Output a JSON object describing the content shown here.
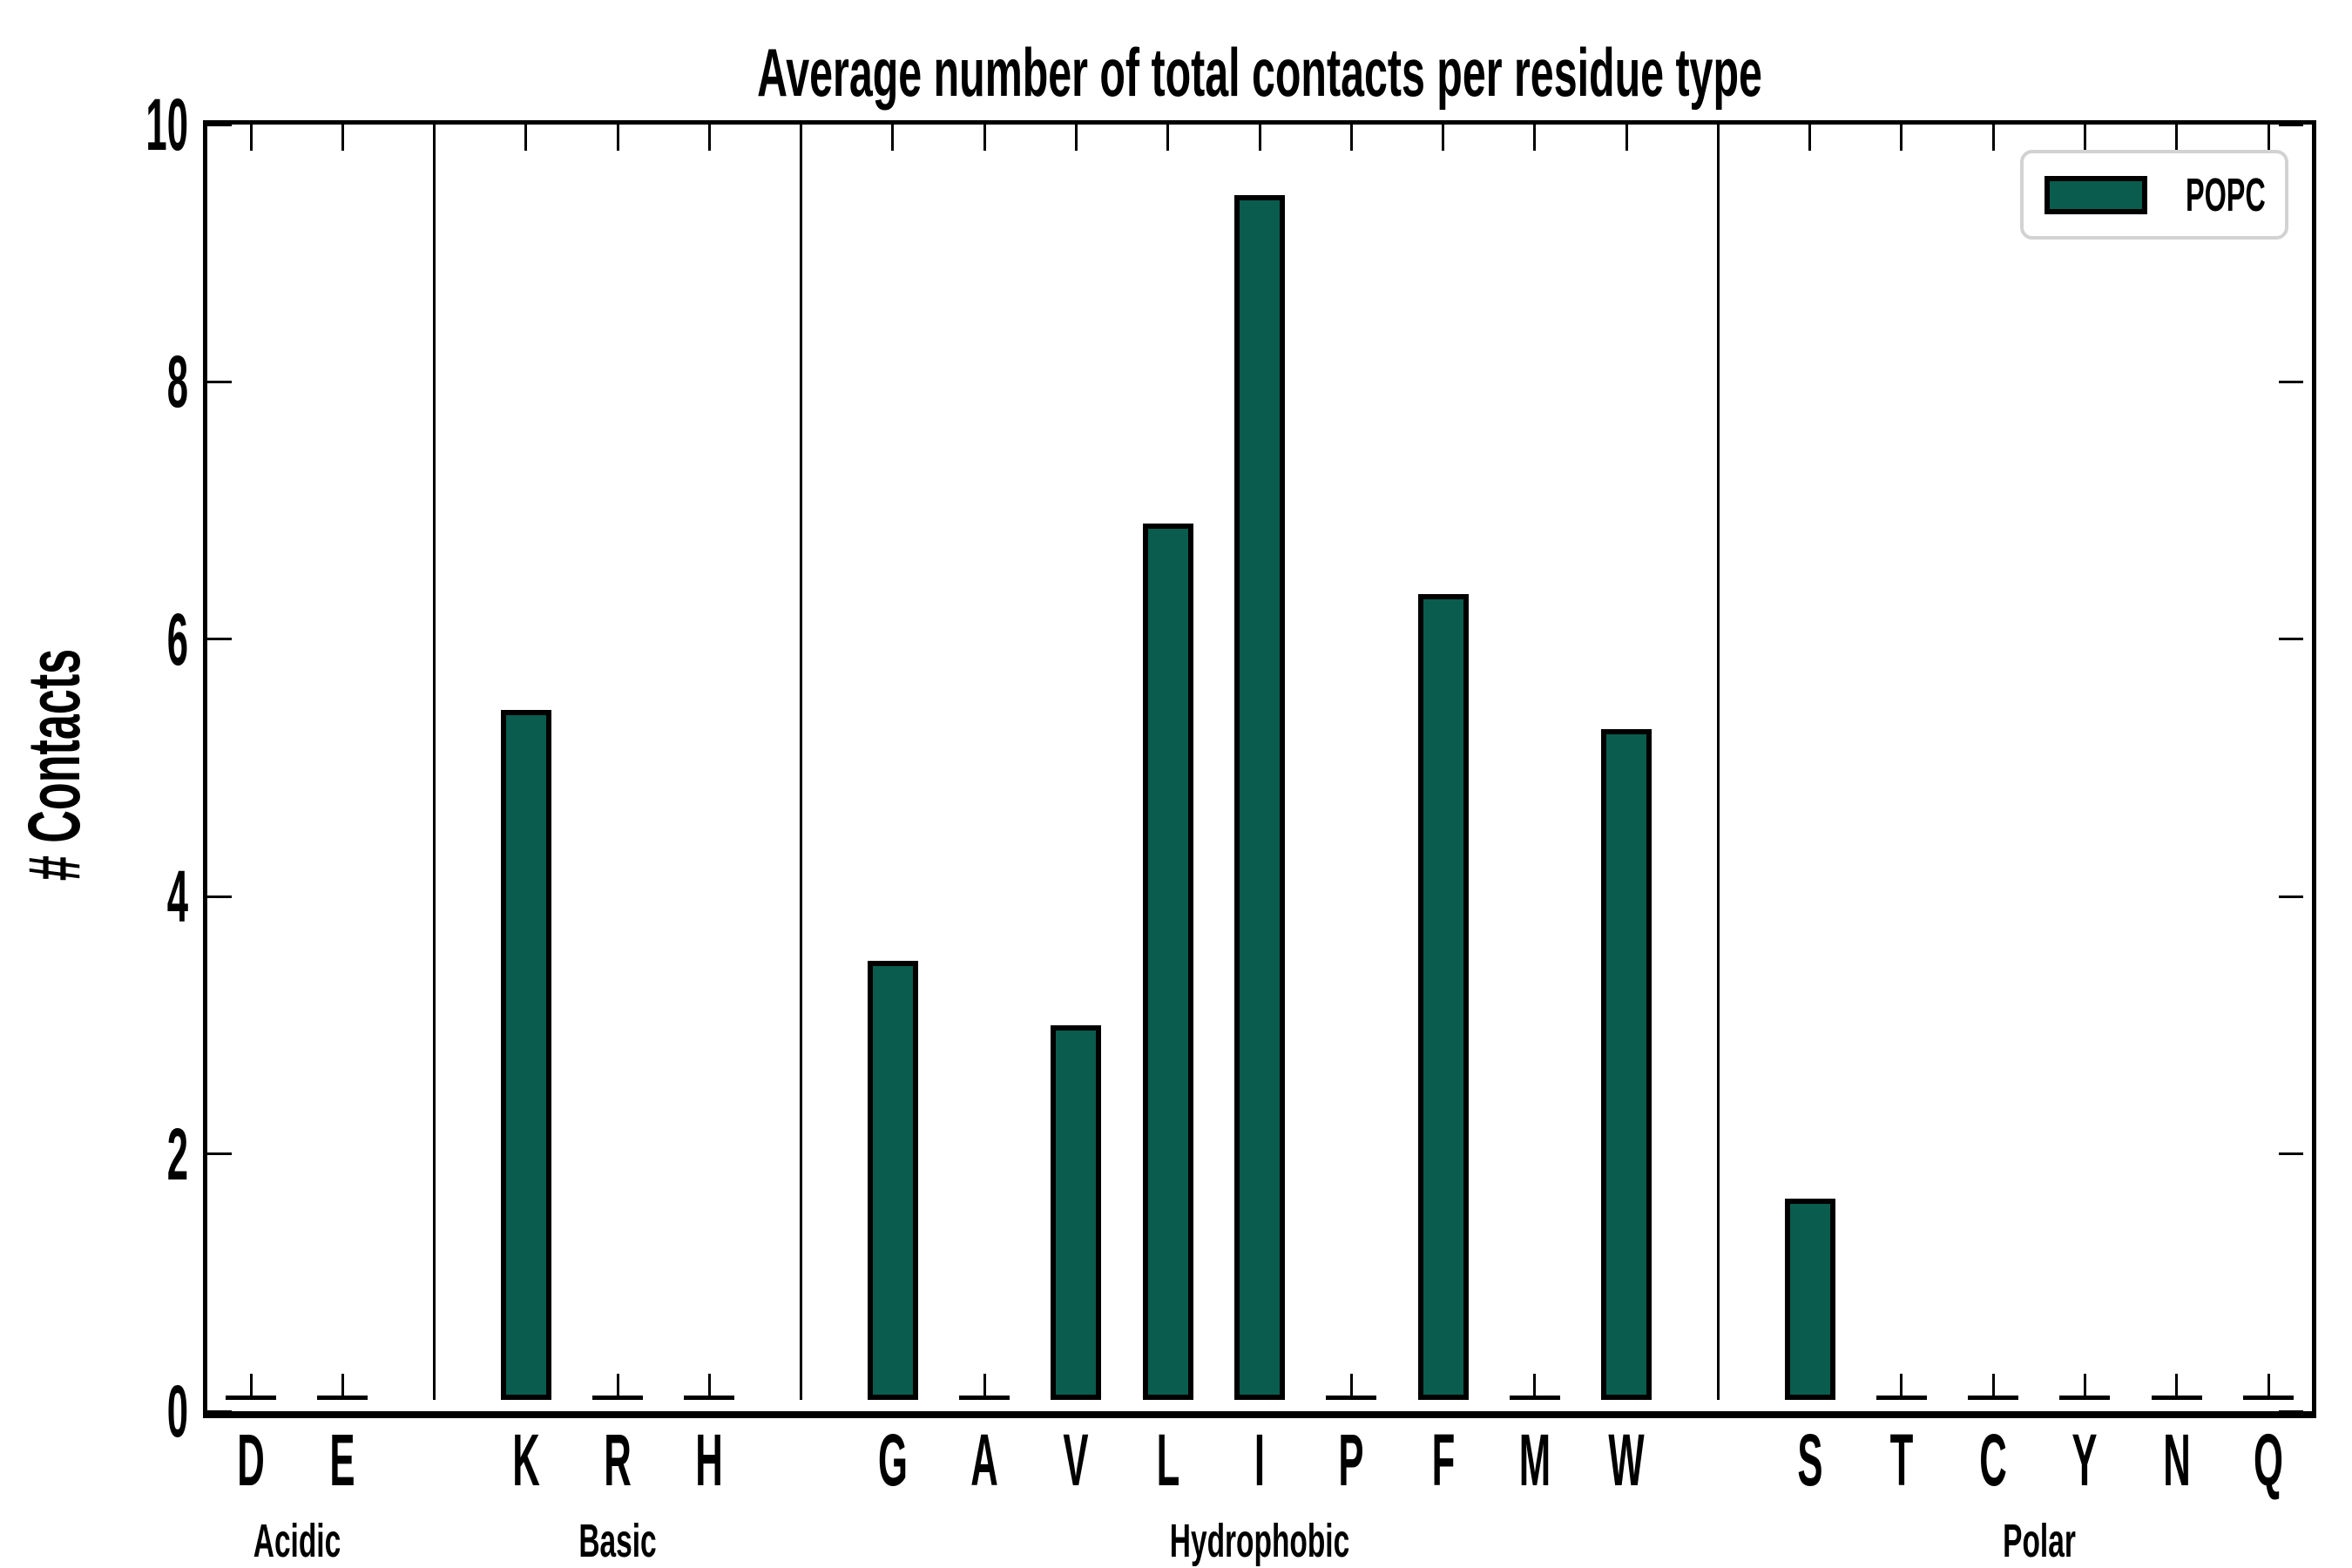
{
  "chart_data": {
    "type": "bar",
    "title": "Average number of total contacts per residue type",
    "ylabel": "# Contacts",
    "xlabel": "",
    "ylim": [
      0,
      10
    ],
    "yticks": [
      0,
      2,
      4,
      6,
      8,
      10
    ],
    "grid": false,
    "bar_color": "#0a5c4e",
    "bar_edge_color": "#000000",
    "legend": {
      "label": "POPC",
      "position": "upper right"
    },
    "groups": [
      {
        "label": "Acidic",
        "categories": [
          "D",
          "E"
        ],
        "values": [
          0.02,
          0.02
        ]
      },
      {
        "label": "Basic",
        "categories": [
          "K",
          "R",
          "H"
        ],
        "values": [
          5.45,
          0.02,
          0.02
        ]
      },
      {
        "label": "Hydrophobic",
        "categories": [
          "G",
          "A",
          "V",
          "L",
          "I",
          "P",
          "F",
          "M",
          "W"
        ],
        "values": [
          3.5,
          0.02,
          3.0,
          6.9,
          9.45,
          0.02,
          6.35,
          0.02,
          5.3
        ]
      },
      {
        "label": "Polar",
        "categories": [
          "S",
          "T",
          "C",
          "Y",
          "N",
          "Q"
        ],
        "values": [
          1.65,
          0.02,
          0.02,
          0.02,
          0.02,
          0.02
        ]
      }
    ]
  }
}
